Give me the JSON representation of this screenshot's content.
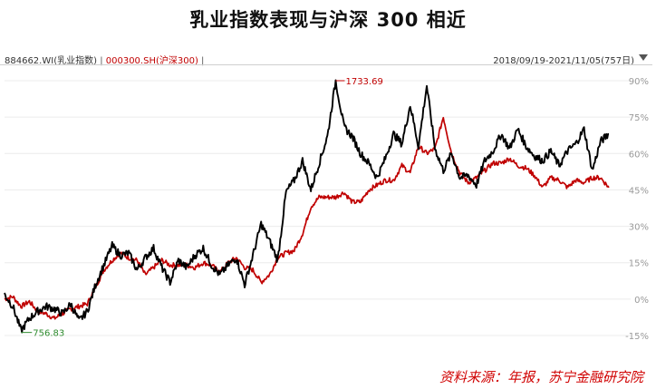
{
  "title": "乳业指数表现与沪深 300 相近",
  "header": {
    "series1_code": "884662.WI(乳业指数)",
    "separator": "|",
    "series2_code": "000300.SH(沪深300)",
    "date_range": "2018/09/19-2021/11/05(757日)"
  },
  "source_note": "资料来源：年报，苏宁金融研究院",
  "colors": {
    "series1": "#000000",
    "series2": "#c00000",
    "min_annotation": "#2e8b2e",
    "max_annotation": "#c00000"
  },
  "chart_data": {
    "type": "line",
    "y_unit": "%",
    "ylim": [
      -18,
      96
    ],
    "y_ticks": [
      "90%",
      "75%",
      "60%",
      "45%",
      "30%",
      "15%",
      "0%",
      "-15%"
    ],
    "y_tick_values": [
      90,
      75,
      60,
      45,
      30,
      15,
      0,
      -15
    ],
    "y_axis_position": "right",
    "grid": true,
    "x_range": [
      "2018/09/19",
      "2021/11/05"
    ],
    "n_points": 757,
    "annotations": {
      "min": {
        "label": "756.83",
        "series": "884662.WI(乳业指数)"
      },
      "max": {
        "label": "1733.69",
        "series": "884662.WI(乳业指数)"
      }
    },
    "series": [
      {
        "name": "884662.WI(乳业指数)",
        "values": [
          2,
          -3,
          -13,
          -8,
          -5,
          -3,
          -4,
          -6,
          -2,
          -9,
          -5,
          6,
          14,
          22,
          18,
          19,
          12,
          17,
          21,
          13,
          7,
          16,
          13,
          18,
          21,
          14,
          10,
          14,
          17,
          6,
          18,
          31,
          24,
          16,
          44,
          49,
          57,
          45,
          56,
          67,
          90,
          71,
          67,
          60,
          56,
          50,
          58,
          68,
          64,
          80,
          63,
          88,
          62,
          53,
          60,
          50,
          51,
          47,
          57,
          61,
          68,
          62,
          70,
          63,
          59,
          57,
          61,
          55,
          61,
          64,
          70,
          53,
          65,
          68
        ]
      },
      {
        "name": "000300.SH(沪深300)",
        "values": [
          0,
          1,
          -3,
          -1,
          -5,
          -6,
          -8,
          -6,
          -4,
          -3,
          -2,
          5,
          12,
          16,
          19,
          17,
          16,
          10,
          13,
          16,
          14,
          14,
          14,
          13,
          15,
          14,
          11,
          15,
          17,
          13,
          12,
          7,
          10,
          17,
          19,
          20,
          27,
          38,
          42,
          42,
          42,
          44,
          40,
          40,
          45,
          47,
          49,
          49,
          55,
          52,
          63,
          60,
          62,
          75,
          60,
          52,
          48,
          50,
          53,
          56,
          56,
          58,
          55,
          54,
          51,
          46,
          50,
          49,
          46,
          49,
          48,
          50,
          50,
          46
        ]
      }
    ]
  }
}
